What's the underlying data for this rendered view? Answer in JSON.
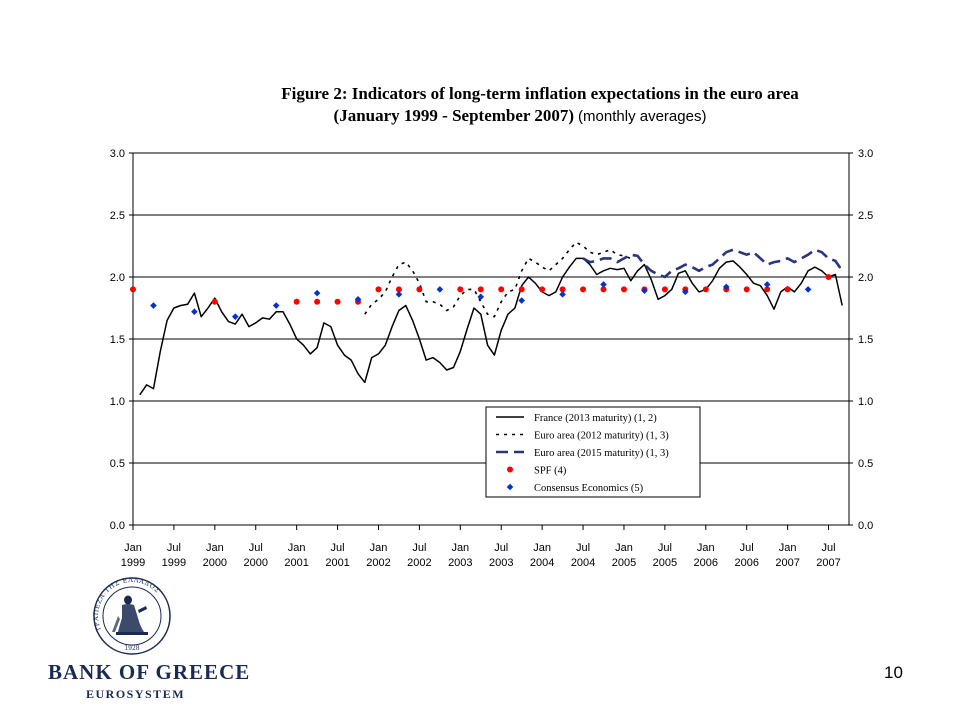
{
  "slide": {
    "title_line1": "Figure 2: Indicators of long-term inflation expectations in the euro area",
    "title_line2": "(January 1999 - September 2007)",
    "title_line2_suffix": "(monthly averages)",
    "page_number": "10"
  },
  "logo": {
    "name": "BANK OF GREECE",
    "subtitle": "EUROSYSTEM",
    "seal_text": "ΤΡΑΠΕΖΑ ΤΗΣ ΕΛΛΑΔΟΣ",
    "seal_year": "1928",
    "color": "#1a2a52"
  },
  "chart_data": {
    "type": "line",
    "title": "Figure 2: Indicators of long-term inflation expectations in the euro area",
    "xlabel": "",
    "ylabel": "",
    "ylim": [
      0,
      3
    ],
    "xlim": [
      "1999-01",
      "2007-10"
    ],
    "y_ticks": [
      "0.0",
      "0.5",
      "1.0",
      "1.5",
      "2.0",
      "2.5",
      "3.0"
    ],
    "y_axis_right": true,
    "grid": "horizontal",
    "x_ticks": [
      {
        "date": "1999-01",
        "line1": "Jan",
        "line2": "1999"
      },
      {
        "date": "1999-07",
        "line1": "Jul",
        "line2": "1999"
      },
      {
        "date": "2000-01",
        "line1": "Jan",
        "line2": "2000"
      },
      {
        "date": "2000-07",
        "line1": "Jul",
        "line2": "2000"
      },
      {
        "date": "2001-01",
        "line1": "Jan",
        "line2": "2001"
      },
      {
        "date": "2001-07",
        "line1": "Jul",
        "line2": "2001"
      },
      {
        "date": "2002-01",
        "line1": "Jan",
        "line2": "2002"
      },
      {
        "date": "2002-07",
        "line1": "Jul",
        "line2": "2002"
      },
      {
        "date": "2003-01",
        "line1": "Jan",
        "line2": "2003"
      },
      {
        "date": "2003-07",
        "line1": "Jul",
        "line2": "2003"
      },
      {
        "date": "2004-01",
        "line1": "Jan",
        "line2": "2004"
      },
      {
        "date": "2004-07",
        "line1": "Jul",
        "line2": "2004"
      },
      {
        "date": "2005-01",
        "line1": "Jan",
        "line2": "2005"
      },
      {
        "date": "2005-07",
        "line1": "Jul",
        "line2": "2005"
      },
      {
        "date": "2006-01",
        "line1": "Jan",
        "line2": "2006"
      },
      {
        "date": "2006-07",
        "line1": "Jul",
        "line2": "2006"
      },
      {
        "date": "2007-01",
        "line1": "Jan",
        "line2": "2007"
      },
      {
        "date": "2007-07",
        "line1": "Jul",
        "line2": "2007"
      }
    ],
    "legend_position": "center-bottom",
    "series": [
      {
        "name": "France (2013 maturity) (1, 2)",
        "style": "solid",
        "color": "#000000",
        "points": [
          [
            "1999-02",
            1.05
          ],
          [
            "1999-03",
            1.13
          ],
          [
            "1999-04",
            1.1
          ],
          [
            "1999-05",
            1.4
          ],
          [
            "1999-06",
            1.65
          ],
          [
            "1999-07",
            1.75
          ],
          [
            "1999-08",
            1.77
          ],
          [
            "1999-09",
            1.78
          ],
          [
            "1999-10",
            1.87
          ],
          [
            "1999-11",
            1.68
          ],
          [
            "1999-12",
            1.75
          ],
          [
            "2000-01",
            1.83
          ],
          [
            "2000-02",
            1.72
          ],
          [
            "2000-03",
            1.64
          ],
          [
            "2000-04",
            1.62
          ],
          [
            "2000-05",
            1.7
          ],
          [
            "2000-06",
            1.6
          ],
          [
            "2000-07",
            1.63
          ],
          [
            "2000-08",
            1.67
          ],
          [
            "2000-09",
            1.66
          ],
          [
            "2000-10",
            1.72
          ],
          [
            "2000-11",
            1.72
          ],
          [
            "2000-12",
            1.62
          ],
          [
            "2001-01",
            1.5
          ],
          [
            "2001-02",
            1.45
          ],
          [
            "2001-03",
            1.38
          ],
          [
            "2001-04",
            1.43
          ],
          [
            "2001-05",
            1.63
          ],
          [
            "2001-06",
            1.6
          ],
          [
            "2001-07",
            1.45
          ],
          [
            "2001-08",
            1.37
          ],
          [
            "2001-09",
            1.33
          ],
          [
            "2001-10",
            1.22
          ],
          [
            "2001-11",
            1.15
          ],
          [
            "2001-12",
            1.35
          ],
          [
            "2002-01",
            1.38
          ],
          [
            "2002-02",
            1.45
          ],
          [
            "2002-03",
            1.6
          ],
          [
            "2002-04",
            1.73
          ],
          [
            "2002-05",
            1.77
          ],
          [
            "2002-06",
            1.65
          ],
          [
            "2002-07",
            1.5
          ],
          [
            "2002-08",
            1.33
          ],
          [
            "2002-09",
            1.35
          ],
          [
            "2002-10",
            1.31
          ],
          [
            "2002-11",
            1.25
          ],
          [
            "2002-12",
            1.27
          ],
          [
            "2003-01",
            1.4
          ],
          [
            "2003-02",
            1.58
          ],
          [
            "2003-03",
            1.75
          ],
          [
            "2003-04",
            1.7
          ],
          [
            "2003-05",
            1.45
          ],
          [
            "2003-06",
            1.37
          ],
          [
            "2003-07",
            1.57
          ],
          [
            "2003-08",
            1.7
          ],
          [
            "2003-09",
            1.75
          ],
          [
            "2003-10",
            1.93
          ],
          [
            "2003-11",
            2.0
          ],
          [
            "2003-12",
            1.95
          ],
          [
            "2004-01",
            1.88
          ],
          [
            "2004-02",
            1.85
          ],
          [
            "2004-03",
            1.88
          ],
          [
            "2004-04",
            2.0
          ],
          [
            "2004-05",
            2.08
          ],
          [
            "2004-06",
            2.15
          ],
          [
            "2004-07",
            2.15
          ],
          [
            "2004-08",
            2.1
          ],
          [
            "2004-09",
            2.02
          ],
          [
            "2004-10",
            2.05
          ],
          [
            "2004-11",
            2.07
          ],
          [
            "2004-12",
            2.06
          ],
          [
            "2005-01",
            2.07
          ],
          [
            "2005-02",
            1.97
          ],
          [
            "2005-03",
            2.05
          ],
          [
            "2005-04",
            2.1
          ],
          [
            "2005-05",
            1.98
          ],
          [
            "2005-06",
            1.82
          ],
          [
            "2005-07",
            1.85
          ],
          [
            "2005-08",
            1.9
          ],
          [
            "2005-09",
            2.03
          ],
          [
            "2005-10",
            2.05
          ],
          [
            "2005-11",
            1.95
          ],
          [
            "2005-12",
            1.88
          ],
          [
            "2006-01",
            1.9
          ],
          [
            "2006-02",
            1.97
          ],
          [
            "2006-03",
            2.07
          ],
          [
            "2006-04",
            2.12
          ],
          [
            "2006-05",
            2.13
          ],
          [
            "2006-06",
            2.08
          ],
          [
            "2006-07",
            2.02
          ],
          [
            "2006-08",
            1.95
          ],
          [
            "2006-09",
            1.93
          ],
          [
            "2006-10",
            1.85
          ],
          [
            "2006-11",
            1.74
          ],
          [
            "2006-12",
            1.88
          ],
          [
            "2007-01",
            1.92
          ],
          [
            "2007-02",
            1.88
          ],
          [
            "2007-03",
            1.95
          ],
          [
            "2007-04",
            2.05
          ],
          [
            "2007-05",
            2.08
          ],
          [
            "2007-06",
            2.05
          ],
          [
            "2007-07",
            2.0
          ],
          [
            "2007-08",
            2.02
          ],
          [
            "2007-09",
            1.77
          ]
        ]
      },
      {
        "name": "Euro area (2012 maturity) (1, 3)",
        "style": "dotted",
        "color": "#000000",
        "points": [
          [
            "2001-11",
            1.7
          ],
          [
            "2001-12",
            1.78
          ],
          [
            "2002-01",
            1.82
          ],
          [
            "2002-02",
            1.88
          ],
          [
            "2002-03",
            2.0
          ],
          [
            "2002-04",
            2.1
          ],
          [
            "2002-05",
            2.12
          ],
          [
            "2002-06",
            2.05
          ],
          [
            "2002-07",
            1.95
          ],
          [
            "2002-08",
            1.8
          ],
          [
            "2002-09",
            1.8
          ],
          [
            "2002-10",
            1.78
          ],
          [
            "2002-11",
            1.73
          ],
          [
            "2002-12",
            1.76
          ],
          [
            "2003-01",
            1.85
          ],
          [
            "2003-02",
            1.9
          ],
          [
            "2003-03",
            1.9
          ],
          [
            "2003-04",
            1.8
          ],
          [
            "2003-05",
            1.7
          ],
          [
            "2003-06",
            1.68
          ],
          [
            "2003-07",
            1.8
          ],
          [
            "2003-08",
            1.88
          ],
          [
            "2003-09",
            1.9
          ],
          [
            "2003-10",
            2.05
          ],
          [
            "2003-11",
            2.15
          ],
          [
            "2003-12",
            2.12
          ],
          [
            "2004-01",
            2.08
          ],
          [
            "2004-02",
            2.05
          ],
          [
            "2004-03",
            2.1
          ],
          [
            "2004-04",
            2.15
          ],
          [
            "2004-05",
            2.22
          ],
          [
            "2004-06",
            2.28
          ],
          [
            "2004-07",
            2.25
          ],
          [
            "2004-08",
            2.2
          ],
          [
            "2004-09",
            2.18
          ],
          [
            "2004-10",
            2.2
          ],
          [
            "2004-11",
            2.22
          ],
          [
            "2004-12",
            2.18
          ],
          [
            "2005-01",
            2.17
          ],
          [
            "2005-02",
            2.15
          ]
        ]
      },
      {
        "name": "Euro area (2015 maturity) (1, 3)",
        "style": "dashed",
        "color": "#2a3580",
        "points": [
          [
            "2004-07",
            2.15
          ],
          [
            "2004-08",
            2.12
          ],
          [
            "2004-09",
            2.13
          ],
          [
            "2004-10",
            2.15
          ],
          [
            "2004-11",
            2.15
          ],
          [
            "2004-12",
            2.12
          ],
          [
            "2005-01",
            2.15
          ],
          [
            "2005-02",
            2.18
          ],
          [
            "2005-03",
            2.17
          ],
          [
            "2005-04",
            2.1
          ],
          [
            "2005-05",
            2.05
          ],
          [
            "2005-06",
            2.02
          ],
          [
            "2005-07",
            2.0
          ],
          [
            "2005-08",
            2.05
          ],
          [
            "2005-09",
            2.07
          ],
          [
            "2005-10",
            2.1
          ],
          [
            "2005-11",
            2.08
          ],
          [
            "2005-12",
            2.05
          ],
          [
            "2006-01",
            2.08
          ],
          [
            "2006-02",
            2.1
          ],
          [
            "2006-03",
            2.15
          ],
          [
            "2006-04",
            2.2
          ],
          [
            "2006-05",
            2.22
          ],
          [
            "2006-06",
            2.2
          ],
          [
            "2006-07",
            2.18
          ],
          [
            "2006-08",
            2.2
          ],
          [
            "2006-09",
            2.15
          ],
          [
            "2006-10",
            2.1
          ],
          [
            "2006-11",
            2.12
          ],
          [
            "2006-12",
            2.13
          ],
          [
            "2007-01",
            2.15
          ],
          [
            "2007-02",
            2.12
          ],
          [
            "2007-03",
            2.15
          ],
          [
            "2007-04",
            2.18
          ],
          [
            "2007-05",
            2.22
          ],
          [
            "2007-06",
            2.2
          ],
          [
            "2007-07",
            2.15
          ],
          [
            "2007-08",
            2.13
          ],
          [
            "2007-09",
            2.05
          ]
        ]
      },
      {
        "name": "SPF (4)",
        "style": "marker-circle",
        "color": "#ff0000",
        "points": [
          [
            "1999-01",
            1.9
          ],
          [
            "2000-01",
            1.8
          ],
          [
            "2001-01",
            1.8
          ],
          [
            "2001-04",
            1.8
          ],
          [
            "2001-07",
            1.8
          ],
          [
            "2001-10",
            1.8
          ],
          [
            "2002-01",
            1.9
          ],
          [
            "2002-04",
            1.9
          ],
          [
            "2002-07",
            1.9
          ],
          [
            "2003-01",
            1.9
          ],
          [
            "2003-04",
            1.9
          ],
          [
            "2003-07",
            1.9
          ],
          [
            "2003-10",
            1.9
          ],
          [
            "2004-01",
            1.9
          ],
          [
            "2004-04",
            1.9
          ],
          [
            "2004-07",
            1.9
          ],
          [
            "2004-10",
            1.9
          ],
          [
            "2005-01",
            1.9
          ],
          [
            "2005-04",
            1.9
          ],
          [
            "2005-07",
            1.9
          ],
          [
            "2005-10",
            1.9
          ],
          [
            "2006-01",
            1.9
          ],
          [
            "2006-04",
            1.9
          ],
          [
            "2006-07",
            1.9
          ],
          [
            "2006-10",
            1.9
          ],
          [
            "2007-01",
            1.9
          ],
          [
            "2007-07",
            2.0
          ]
        ]
      },
      {
        "name": "Consensus Economics (5)",
        "style": "marker-diamond",
        "color": "#0033cc",
        "points": [
          [
            "1999-04",
            1.77
          ],
          [
            "1999-10",
            1.72
          ],
          [
            "2000-04",
            1.68
          ],
          [
            "2000-10",
            1.77
          ],
          [
            "2001-04",
            1.87
          ],
          [
            "2001-10",
            1.82
          ],
          [
            "2002-04",
            1.86
          ],
          [
            "2002-10",
            1.9
          ],
          [
            "2003-04",
            1.84
          ],
          [
            "2003-10",
            1.81
          ],
          [
            "2004-04",
            1.86
          ],
          [
            "2004-10",
            1.94
          ],
          [
            "2005-04",
            1.89
          ],
          [
            "2005-10",
            1.88
          ],
          [
            "2006-04",
            1.92
          ],
          [
            "2006-10",
            1.94
          ],
          [
            "2007-04",
            1.9
          ]
        ]
      }
    ]
  }
}
